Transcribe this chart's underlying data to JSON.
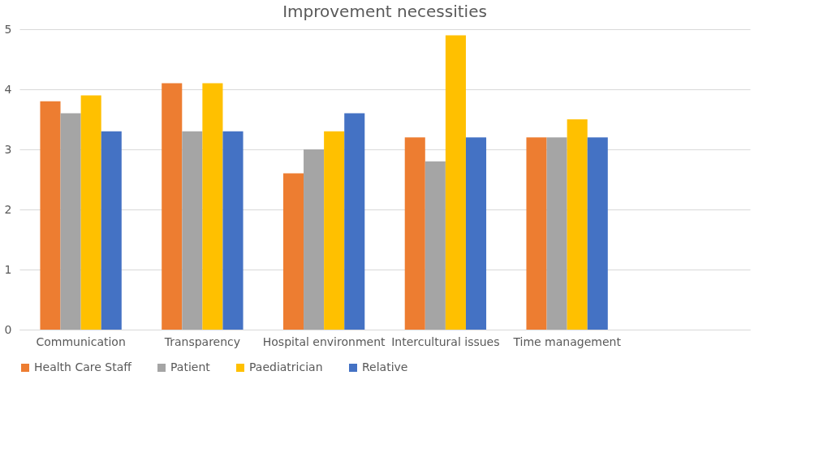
{
  "chart_data": {
    "type": "bar",
    "title": "Improvement necessities",
    "categories": [
      "Communication",
      "Transparency",
      "Hospital environment",
      "Intercultural issues",
      "Time management",
      null
    ],
    "series": [
      {
        "name": "Health Care Staff",
        "color": "#ed7d31",
        "values": [
          3.8,
          4.1,
          2.6,
          3.2,
          3.2,
          null
        ]
      },
      {
        "name": "Patient",
        "color": "#a5a5a5",
        "values": [
          3.6,
          3.3,
          3.0,
          2.8,
          3.2,
          null
        ]
      },
      {
        "name": "Paediatrician",
        "color": "#ffc000",
        "values": [
          3.9,
          4.1,
          3.3,
          4.9,
          3.5,
          null
        ]
      },
      {
        "name": "Relative",
        "color": "#4472c4",
        "values": [
          3.3,
          3.3,
          3.6,
          3.2,
          3.2,
          null
        ]
      }
    ],
    "ylim": [
      0,
      5
    ],
    "yticks": [
      0,
      1,
      2,
      3,
      4,
      5
    ],
    "grid": "y",
    "legend": "bottom"
  }
}
